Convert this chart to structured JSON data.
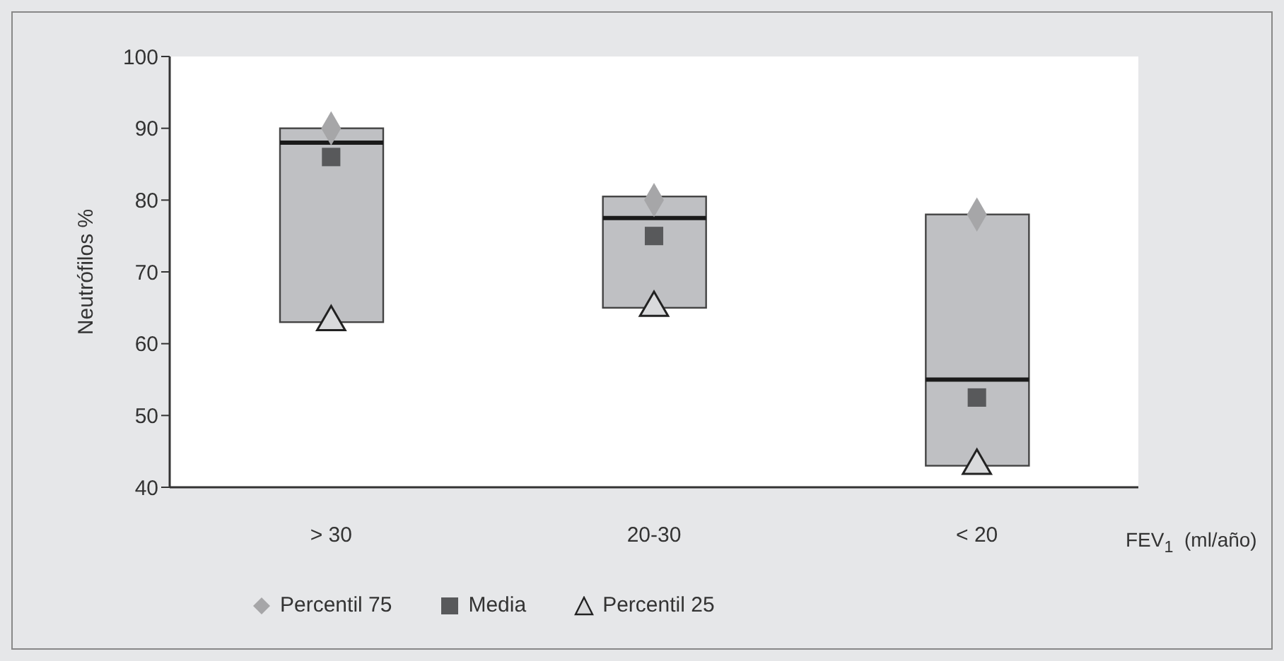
{
  "chart_data": {
    "type": "box",
    "ylabel": "Neutrófilos %",
    "xlabel": "FEV$_{1}$  (ml/año)",
    "categories": [
      "> 30",
      "20-30",
      "< 20"
    ],
    "boxes": [
      {
        "low": 63,
        "q1": 63,
        "median": 88,
        "q3": 90,
        "high": 90
      },
      {
        "low": 65,
        "q1": 65,
        "median": 77.5,
        "q3": 80.5,
        "high": 80.5
      },
      {
        "low": 43,
        "q1": 43,
        "median": 55,
        "q3": 78,
        "high": 78
      }
    ],
    "color": "#bfc0c3",
    "series": [
      {
        "type": "scatter",
        "name": "Percentil 75",
        "color": "#a6a6a8",
        "marker": "diamond",
        "values": [
          90,
          80,
          78
        ]
      },
      {
        "type": "scatter",
        "name": "Media",
        "color": "#58595b",
        "marker": "square",
        "values": [
          86,
          75,
          52.5
        ]
      },
      {
        "type": "scatter",
        "name": "Percentil 25",
        "color": "#d9dadc",
        "marker": "triangle",
        "values": [
          63,
          65,
          43
        ]
      }
    ],
    "ylim": [
      40,
      100
    ],
    "yticks": [
      40,
      50,
      60,
      70,
      80,
      90,
      100
    ],
    "legend": "bottom"
  }
}
